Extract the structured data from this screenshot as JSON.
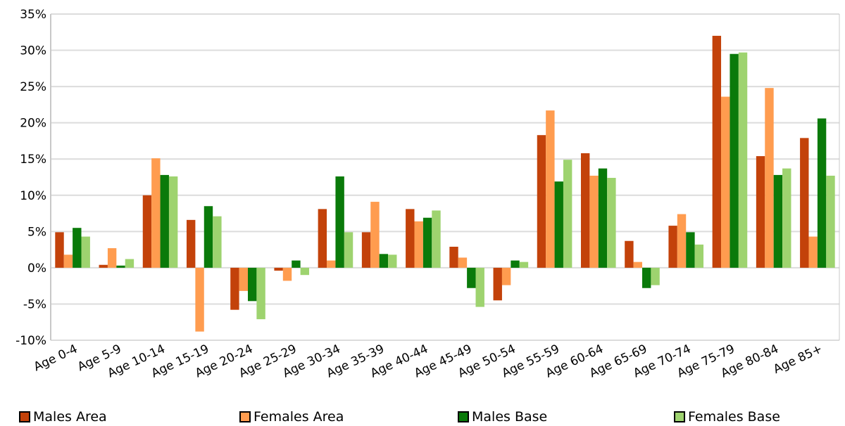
{
  "chart_data": {
    "type": "bar",
    "categories": [
      "Age 0-4",
      "Age 5-9",
      "Age 10-14",
      "Age 15-19",
      "Age 20-24",
      "Age 25-29",
      "Age 30-34",
      "Age 35-39",
      "Age 40-44",
      "Age 45-49",
      "Age 50-54",
      "Age 55-59",
      "Age 60-64",
      "Age 65-69",
      "Age 70-74",
      "Age 75-79",
      "Age 80-84",
      "Age 85+"
    ],
    "series": [
      {
        "name": "Males Area",
        "color": "#c3420a",
        "values": [
          4.9,
          0.4,
          10.0,
          6.6,
          -5.8,
          -0.4,
          8.1,
          4.9,
          8.1,
          2.9,
          -4.5,
          18.3,
          15.8,
          3.7,
          5.8,
          32.0,
          15.4,
          17.9
        ]
      },
      {
        "name": "Females Area",
        "color": "#ff9c4f",
        "values": [
          1.8,
          2.7,
          15.1,
          -8.8,
          -3.2,
          -1.8,
          1.0,
          9.1,
          6.4,
          1.4,
          -2.4,
          21.7,
          12.7,
          0.8,
          7.4,
          23.6,
          24.8,
          4.3
        ]
      },
      {
        "name": "Males Base",
        "color": "#0a7a0a",
        "values": [
          5.5,
          0.3,
          12.8,
          8.5,
          -4.6,
          1.0,
          12.6,
          1.9,
          6.9,
          -2.8,
          1.0,
          11.9,
          13.7,
          -2.8,
          4.9,
          29.5,
          12.8,
          20.6
        ]
      },
      {
        "name": "Females Base",
        "color": "#9ed36f",
        "values": [
          4.3,
          1.2,
          12.6,
          7.1,
          -7.1,
          -1.0,
          4.9,
          1.8,
          7.9,
          -5.4,
          0.8,
          14.9,
          12.4,
          -2.4,
          3.2,
          29.7,
          13.7,
          12.7
        ]
      }
    ],
    "yticks": [
      "-10%",
      "-5%",
      "0%",
      "5%",
      "10%",
      "15%",
      "20%",
      "25%",
      "30%",
      "35%"
    ],
    "ylim": [
      -10,
      35
    ],
    "grid": true,
    "legend_position": "bottom"
  }
}
